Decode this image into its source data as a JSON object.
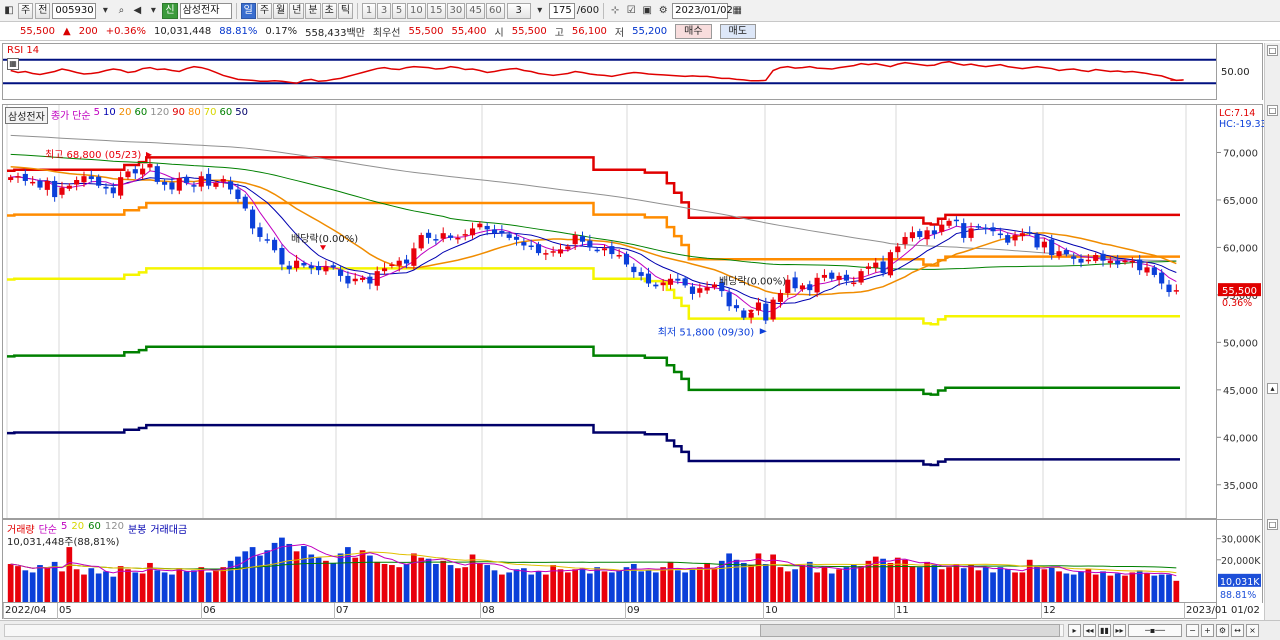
{
  "toolbar": {
    "period_selector": "주",
    "code_mode": "전",
    "stock_code": "005930",
    "stock_name": "삼성전자",
    "stock_badge": "신",
    "period_tabs": [
      {
        "label": "일",
        "active": true
      },
      {
        "label": "주",
        "active": false
      },
      {
        "label": "월",
        "active": false
      },
      {
        "label": "년",
        "active": false
      },
      {
        "label": "분",
        "active": false
      },
      {
        "label": "초",
        "active": false
      },
      {
        "label": "틱",
        "active": false
      }
    ],
    "interval_buttons": [
      "1",
      "3",
      "5",
      "10",
      "15",
      "30",
      "45",
      "60"
    ],
    "interval_select": "3",
    "count": "175",
    "max_count": "/600",
    "date": "2023/01/02"
  },
  "quote": {
    "price": "55,500",
    "change_arrow": "▲",
    "change": "200",
    "change_pct": "+0.36%",
    "volume": "10,031,448",
    "volume_ratio": "88.81%",
    "turnover_rate": "0.17%",
    "trade_value": "558,433백만",
    "best_bid_label": "최우선",
    "best_ask": "55,500",
    "best_bid": "55,400",
    "open_label": "시",
    "open": "55,500",
    "high_label": "고",
    "high": "56,100",
    "low_label": "저",
    "low": "55,200",
    "buy_label": "매수",
    "sell_label": "매도"
  },
  "colors": {
    "up": "#e8000b",
    "down": "#0b3fd9",
    "ma5": "#c000c0",
    "ma10": "#0000b0",
    "ma20": "#f08c00",
    "ma60": "#008000",
    "ma120": "#909090",
    "env90": "#e00000",
    "env80": "#ff8c00",
    "env70": "#f5f500",
    "env60": "#008000",
    "env50": "#00006a",
    "rsi": "#e00000",
    "rsi_band": "#001080",
    "marker_min": "#0b3fd9",
    "marker_max": "#e8000b"
  },
  "chart_data": [
    {
      "type": "line",
      "name_label": "RSI 14",
      "y_ticks": [
        "50.00"
      ],
      "y_range": [
        0,
        100
      ],
      "bands": [
        70,
        30
      ],
      "values": [
        52,
        48,
        50,
        46,
        44,
        47,
        50,
        55,
        52,
        48,
        45,
        46,
        48,
        52,
        55,
        53,
        48,
        50,
        56,
        58,
        54,
        55,
        52,
        50,
        56,
        60,
        58,
        54,
        48,
        42,
        38,
        34,
        33,
        32,
        30,
        30,
        31,
        30,
        28,
        26,
        32,
        34,
        30,
        31,
        34,
        36,
        40,
        44,
        48,
        52,
        56,
        58,
        55,
        54,
        58,
        60,
        59,
        58,
        55,
        56,
        60,
        58,
        54,
        55,
        52,
        48,
        50,
        53,
        55,
        56,
        52,
        50,
        46,
        44,
        42,
        44,
        46,
        50,
        48,
        45,
        43,
        42,
        40,
        43,
        46,
        48,
        47,
        45,
        44,
        43,
        42,
        41,
        40,
        41,
        40,
        40,
        38,
        36,
        36,
        34,
        33,
        31,
        31,
        32,
        52,
        58,
        60,
        57,
        58,
        60,
        57,
        56,
        55,
        58,
        60,
        62,
        66,
        64,
        66,
        63,
        60,
        65,
        68,
        66,
        64,
        62,
        63,
        68,
        70,
        66,
        63,
        65,
        62,
        60,
        62,
        64,
        60,
        58,
        56,
        58,
        60,
        58,
        56,
        52,
        54,
        55,
        52,
        50,
        54,
        52,
        50,
        51,
        49,
        50,
        48,
        46,
        43,
        41,
        36,
        32,
        33
      ]
    },
    {
      "type": "candlestick",
      "name_label": "삼성전자",
      "legend": [
        "종가",
        "단순",
        "5",
        "10",
        "20",
        "60",
        "120",
        "90",
        "80",
        "70",
        "60",
        "50"
      ],
      "y_ticks": [
        "70,000",
        "65,000",
        "60,000",
        "55,000",
        "50,000",
        "45,000",
        "40,000",
        "35,000"
      ],
      "y_range": [
        31500,
        75000
      ],
      "lc_label": "LC:7.14",
      "hc_label": "HC:-19.33",
      "last_price": "55,500",
      "last_change_pct": "0.36%",
      "annotations": {
        "high": "최고 68,800 (05/23)",
        "low": "최저 51,800 (09/30)",
        "dividend_1": "배당락(0.00%)",
        "dividend_2": "배당락(0.00%)"
      },
      "close": [
        67400,
        67500,
        67000,
        66900,
        66300,
        67000,
        65300,
        66300,
        66500,
        67100,
        67500,
        67200,
        66500,
        66200,
        65700,
        67400,
        68000,
        67800,
        68300,
        68800,
        66900,
        66600,
        66100,
        67300,
        66800,
        66400,
        67500,
        66500,
        66800,
        67200,
        66100,
        65100,
        64100,
        62000,
        61100,
        60800,
        59700,
        58200,
        57700,
        58600,
        58100,
        57800,
        57600,
        58000,
        57900,
        57000,
        56200,
        56700,
        56800,
        56200,
        57500,
        57800,
        58200,
        58600,
        58300,
        59900,
        61300,
        61000,
        60800,
        61500,
        61000,
        61000,
        61400,
        62000,
        62500,
        61900,
        61500,
        61500,
        61000,
        60800,
        60200,
        60100,
        59400,
        59400,
        59600,
        59800,
        60100,
        61300,
        60600,
        60000,
        59700,
        59900,
        59300,
        59200,
        58200,
        57400,
        57000,
        56200,
        55900,
        56300,
        56700,
        56500,
        56000,
        55100,
        55700,
        55800,
        56100,
        55400,
        53800,
        53600,
        52600,
        53100,
        54200,
        52300,
        54500,
        55200,
        56600,
        55700,
        56000,
        55500,
        56800,
        57100,
        56700,
        57000,
        56500,
        56300,
        57500,
        58000,
        58400,
        57300,
        59500,
        60100,
        61100,
        61600,
        61100,
        61800,
        61400,
        62400,
        62800,
        62800,
        61000,
        62000,
        62200,
        62000,
        61700,
        61300,
        60500,
        61300,
        61500,
        61600,
        60000,
        60600,
        59200,
        59600,
        59300,
        58800,
        58400,
        58700,
        59200,
        58600,
        58600,
        58200,
        58600,
        58600,
        57600,
        57900,
        57100,
        56200,
        55300,
        55500
      ],
      "ma_labels": [
        "5",
        "10",
        "20",
        "60",
        "120"
      ],
      "envelope_labels": [
        "90",
        "80",
        "70",
        "60",
        "50"
      ]
    },
    {
      "type": "bar",
      "name_label": "거래량",
      "legend": [
        "단순",
        "5",
        "20",
        "60",
        "120",
        "분봉",
        "거래대금"
      ],
      "info": "10,031,448주(88,81%)",
      "y_ticks": [
        "30,000K",
        "20,000K"
      ],
      "last_value": "10,031K",
      "last_ratio": "88.81%",
      "units": "K shares",
      "values": [
        18000,
        17000,
        15000,
        14000,
        17500,
        16500,
        19000,
        14500,
        26000,
        15500,
        13000,
        16000,
        13500,
        14500,
        12000,
        17000,
        15500,
        14000,
        13500,
        18500,
        15000,
        14000,
        13000,
        16000,
        14500,
        15000,
        16500,
        14000,
        15500,
        16500,
        19500,
        21500,
        24000,
        26000,
        22000,
        24500,
        28000,
        30500,
        27500,
        24000,
        26500,
        22500,
        21000,
        19500,
        18500,
        23000,
        26000,
        21000,
        24500,
        22000,
        19000,
        18000,
        17500,
        16500,
        18000,
        23000,
        21000,
        20500,
        18000,
        19500,
        17500,
        16000,
        16500,
        22500,
        18500,
        17500,
        15000,
        13000,
        14000,
        15500,
        16000,
        13000,
        14500,
        13000,
        17500,
        15500,
        14000,
        15500,
        16000,
        13500,
        16500,
        14500,
        14000,
        15000,
        16500,
        18000,
        14500,
        15000,
        14000,
        16500,
        19000,
        15000,
        14000,
        15500,
        16500,
        18500,
        16000,
        19500,
        23000,
        20000,
        18500,
        17500,
        23000,
        18000,
        22500,
        16500,
        14500,
        15500,
        17500,
        19000,
        14000,
        17000,
        13500,
        15500,
        16500,
        18000,
        17000,
        19500,
        21500,
        20500,
        18500,
        21000,
        20000,
        17000,
        16500,
        19000,
        17500,
        15500,
        16500,
        18000,
        16000,
        17500,
        15000,
        16500,
        14000,
        16500,
        15500,
        14000,
        14000,
        20000,
        17000,
        15500,
        16500,
        14500,
        13500,
        13000,
        14500,
        15500,
        13000,
        14500,
        12500,
        13500,
        12500,
        14000,
        15000,
        13500,
        12500,
        13000,
        13000,
        10031
      ]
    }
  ],
  "xaxis": {
    "labels": [
      "2022/04",
      "05",
      "06",
      "07",
      "08",
      "09",
      "10",
      "11",
      "12",
      "2023/01",
      "01/02"
    ]
  }
}
